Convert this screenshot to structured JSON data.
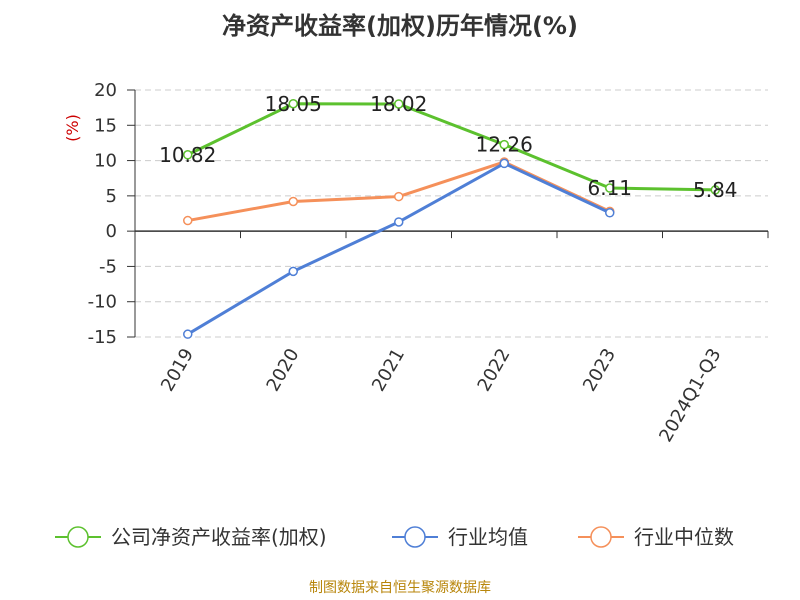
{
  "chart_data": {
    "type": "line",
    "title": "净资产收益率(加权)历年情况(%)",
    "ylabel": "(%)",
    "xlabel": "",
    "categories": [
      "2019",
      "2020",
      "2021",
      "2022",
      "2023",
      "2024Q1-Q3"
    ],
    "ylim": [
      -15,
      20
    ],
    "yticks": [
      20,
      15,
      10,
      5,
      0,
      -5,
      -10,
      -15
    ],
    "grid": true,
    "legend_position": "bottom",
    "series": [
      {
        "name": "公司净资产收益率(加权)",
        "color": "#5cc12e",
        "values": [
          10.82,
          18.05,
          18.02,
          12.26,
          6.11,
          5.84
        ],
        "labels": [
          "10.82",
          "18.05",
          "18.02",
          "12.26",
          "6.11",
          "5.84"
        ]
      },
      {
        "name": "行业均值",
        "color": "#4f7fd6",
        "values": [
          -14.6,
          -5.7,
          1.3,
          9.6,
          2.6,
          null
        ]
      },
      {
        "name": "行业中位数",
        "color": "#f5905a",
        "values": [
          1.5,
          4.2,
          4.9,
          9.8,
          2.8,
          null
        ]
      }
    ]
  },
  "source": "制图数据来自恒生聚源数据库"
}
